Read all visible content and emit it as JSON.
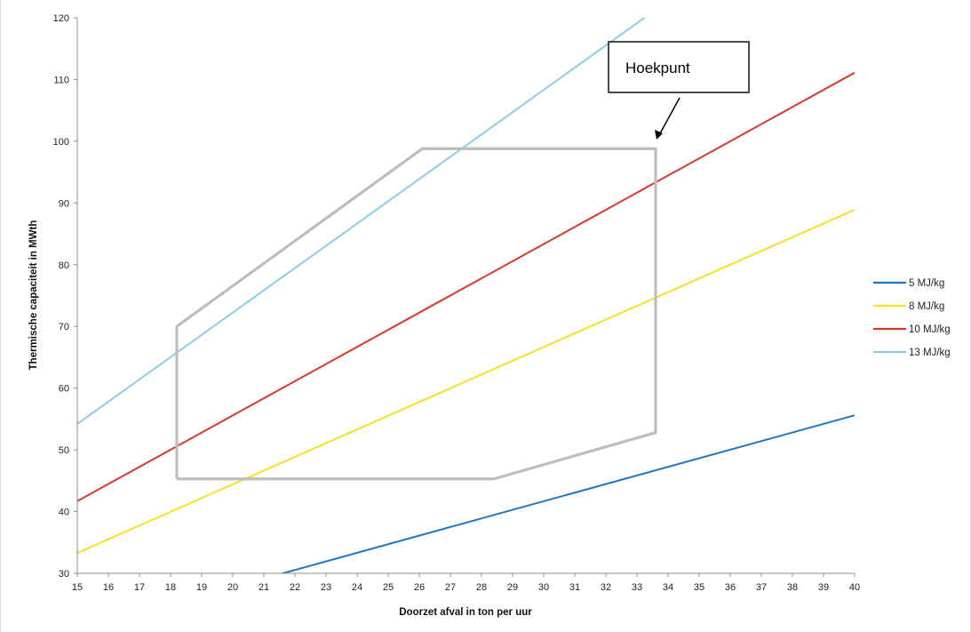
{
  "chart_data": {
    "type": "line",
    "title": "",
    "xlabel": "Doorzet afval in ton per uur",
    "ylabel": "Thermische capaciteit in MWth",
    "xlim": [
      15,
      40
    ],
    "ylim": [
      30,
      120
    ],
    "x_ticks": [
      15,
      16,
      17,
      18,
      19,
      20,
      21,
      22,
      23,
      24,
      25,
      26,
      27,
      28,
      29,
      30,
      31,
      32,
      33,
      34,
      35,
      36,
      37,
      38,
      39,
      40
    ],
    "y_ticks": [
      30,
      40,
      50,
      60,
      70,
      80,
      90,
      100,
      110,
      120
    ],
    "grid": false,
    "legend_position": "right",
    "series": [
      {
        "name": "5 MJ/kg",
        "color": "#1F77C4",
        "x": [
          15,
          40
        ],
        "y": [
          20.8,
          55.6
        ]
      },
      {
        "name": "8 MJ/kg",
        "color": "#F5E02A",
        "x": [
          15,
          40
        ],
        "y": [
          33.3,
          88.9
        ]
      },
      {
        "name": "10 MJ/kg",
        "color": "#D9372A",
        "x": [
          15,
          40
        ],
        "y": [
          41.7,
          111.1
        ]
      },
      {
        "name": "13 MJ/kg",
        "color": "#8DCCE8",
        "x": [
          15,
          40
        ],
        "y": [
          54.2,
          144.4
        ]
      }
    ],
    "envelope": {
      "color": "#BDBDBD",
      "x": [
        18.2,
        18.2,
        26.1,
        33.6,
        33.6,
        28.4,
        18.2
      ],
      "y": [
        45.3,
        70.0,
        98.8,
        98.8,
        52.8,
        45.3,
        45.3
      ]
    },
    "annotation": {
      "text": "Hoekpunt",
      "arrow_to": [
        33.6,
        98.8
      ]
    }
  }
}
